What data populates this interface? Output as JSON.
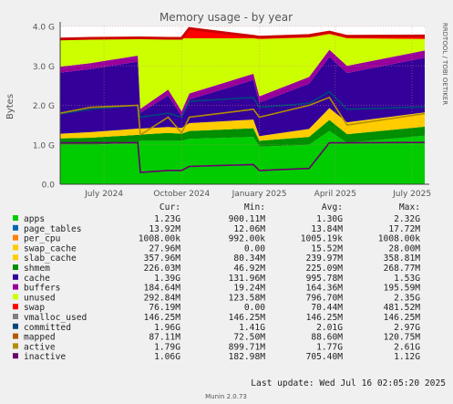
{
  "chart_data": {
    "type": "area",
    "title": "Memory usage - by year",
    "ylabel": "Bytes",
    "side_label": "RRDTOOL / TOBI OETIKER",
    "y_ticks": [
      "0.0",
      "1.0 G",
      "2.0 G",
      "3.0 G",
      "4.0 G"
    ],
    "ylim_gb": [
      0,
      4.0
    ],
    "x_ticks": [
      "July 2024",
      "October 2024",
      "January 2025",
      "April 2025",
      "July 2025"
    ],
    "x_range": [
      "2024-05-10",
      "2025-07-16"
    ],
    "grid": true,
    "columns": [
      "Cur:",
      "Min:",
      "Avg:",
      "Max:"
    ],
    "series": [
      {
        "name": "apps",
        "color": "#00cc00",
        "cur": "1.23G",
        "min": "900.11M",
        "avg": "1.30G",
        "max": "2.32G"
      },
      {
        "name": "page_tables",
        "color": "#0066b3",
        "cur": "13.92M",
        "min": "12.06M",
        "avg": "13.84M",
        "max": "17.72M"
      },
      {
        "name": "per_cpu",
        "color": "#ff8000",
        "cur": "1008.00k",
        "min": "992.00k",
        "avg": "1005.19k",
        "max": "1008.00k"
      },
      {
        "name": "swap_cache",
        "color": "#ffcc00",
        "cur": "27.96M",
        "min": "0.00",
        "avg": "15.52M",
        "max": "28.00M"
      },
      {
        "name": "slab_cache",
        "color": "#ffcc00",
        "cur": "357.96M",
        "min": "80.34M",
        "avg": "239.97M",
        "max": "358.81M"
      },
      {
        "name": "shmem",
        "color": "#008f00",
        "cur": "226.03M",
        "min": "46.92M",
        "avg": "225.09M",
        "max": "268.77M"
      },
      {
        "name": "cache",
        "color": "#330099",
        "cur": "1.39G",
        "min": "131.96M",
        "avg": "995.78M",
        "max": "1.53G"
      },
      {
        "name": "buffers",
        "color": "#990099",
        "cur": "184.64M",
        "min": "19.24M",
        "avg": "164.36M",
        "max": "195.59M"
      },
      {
        "name": "unused",
        "color": "#ccff00",
        "cur": "292.84M",
        "min": "123.58M",
        "avg": "796.70M",
        "max": "2.35G"
      },
      {
        "name": "swap",
        "color": "#ff0000",
        "cur": "76.19M",
        "min": "0.00",
        "avg": "70.44M",
        "max": "481.52M"
      },
      {
        "name": "vmalloc_used",
        "color": "#808080",
        "cur": "146.25M",
        "min": "146.25M",
        "avg": "146.25M",
        "max": "146.25M"
      },
      {
        "name": "committed",
        "color": "#00487d",
        "cur": "1.96G",
        "min": "1.41G",
        "avg": "2.01G",
        "max": "2.97G"
      },
      {
        "name": "mapped",
        "color": "#b35a00",
        "cur": "87.11M",
        "min": "72.50M",
        "avg": "88.60M",
        "max": "120.75M"
      },
      {
        "name": "active",
        "color": "#b38f00",
        "cur": "1.79G",
        "min": "899.71M",
        "avg": "1.77G",
        "max": "2.61G"
      },
      {
        "name": "inactive",
        "color": "#6b006b",
        "cur": "1.06G",
        "min": "182.98M",
        "avg": "705.40M",
        "max": "1.12G"
      }
    ],
    "stack_keys": [
      "apps",
      "shmem",
      "slab_cache",
      "cache",
      "buffers",
      "unused",
      "swap"
    ],
    "stack_colors": {
      "apps": "#00cc00",
      "shmem": "#008f00",
      "slab_cache": "#ffcc00",
      "cache": "#330099",
      "buffers": "#990099",
      "unused": "#ccff00",
      "swap": "#ff0000"
    },
    "line_colors": {
      "committed": "#00487d",
      "active": "#b38f00",
      "inactive": "#6b006b",
      "swap": "#cc0000"
    },
    "stack_points": [
      {
        "x": "2024-05-10",
        "apps": 1.0,
        "shmem": 0.16,
        "slab_cache": 0.12,
        "cache": 1.55,
        "buffers": 0.15,
        "unused": 0.7,
        "swap": 0.0,
        "committed": 1.78,
        "active": 1.8,
        "inactive": 1.05
      },
      {
        "x": "2024-06-15",
        "apps": 1.0,
        "shmem": 0.18,
        "slab_cache": 0.14,
        "cache": 1.6,
        "buffers": 0.15,
        "unused": 0.63,
        "swap": 0.0,
        "committed": 1.9,
        "active": 1.95,
        "inactive": 1.05
      },
      {
        "x": "2024-08-10",
        "apps": 1.05,
        "shmem": 0.2,
        "slab_cache": 0.16,
        "cache": 1.7,
        "buffers": 0.15,
        "unused": 0.45,
        "swap": 0.0,
        "committed": 2.0,
        "active": 2.0,
        "inactive": 1.05
      },
      {
        "x": "2024-08-13",
        "apps": 1.1,
        "shmem": 0.16,
        "slab_cache": 0.15,
        "cache": 0.4,
        "buffers": 0.1,
        "unused": 1.8,
        "swap": 0.0,
        "committed": 1.7,
        "active": 1.25,
        "inactive": 0.3
      },
      {
        "x": "2024-09-15",
        "apps": 1.1,
        "shmem": 0.2,
        "slab_cache": 0.15,
        "cache": 0.8,
        "buffers": 0.15,
        "unused": 1.3,
        "swap": 0.0,
        "committed": 1.8,
        "active": 1.7,
        "inactive": 0.35
      },
      {
        "x": "2024-10-01",
        "apps": 1.1,
        "shmem": 0.18,
        "slab_cache": 0.15,
        "cache": 0.3,
        "buffers": 0.12,
        "unused": 1.85,
        "swap": 0.0,
        "committed": 1.7,
        "active": 1.3,
        "inactive": 0.35
      },
      {
        "x": "2024-10-10",
        "apps": 1.15,
        "shmem": 0.2,
        "slab_cache": 0.2,
        "cache": 0.6,
        "buffers": 0.15,
        "unused": 1.4,
        "swap": 0.25,
        "committed": 2.1,
        "active": 1.7,
        "inactive": 0.45
      },
      {
        "x": "2024-12-25",
        "apps": 1.2,
        "shmem": 0.22,
        "slab_cache": 0.22,
        "cache": 1.0,
        "buffers": 0.16,
        "unused": 0.9,
        "swap": 0.05,
        "committed": 2.2,
        "active": 1.9,
        "inactive": 0.5
      },
      {
        "x": "2025-01-01",
        "apps": 0.95,
        "shmem": 0.15,
        "slab_cache": 0.12,
        "cache": 0.85,
        "buffers": 0.16,
        "unused": 1.45,
        "swap": 0.05,
        "committed": 1.95,
        "active": 1.7,
        "inactive": 0.35
      },
      {
        "x": "2025-03-01",
        "apps": 1.0,
        "shmem": 0.2,
        "slab_cache": 0.2,
        "cache": 1.15,
        "buffers": 0.17,
        "unused": 1.0,
        "swap": 0.05,
        "committed": 2.05,
        "active": 2.0,
        "inactive": 0.4
      },
      {
        "x": "2025-03-25",
        "apps": 1.35,
        "shmem": 0.28,
        "slab_cache": 0.3,
        "cache": 1.3,
        "buffers": 0.18,
        "unused": 0.4,
        "swap": 0.05,
        "committed": 2.35,
        "active": 2.2,
        "inactive": 1.05
      },
      {
        "x": "2025-04-15",
        "apps": 1.05,
        "shmem": 0.22,
        "slab_cache": 0.3,
        "cache": 1.25,
        "buffers": 0.18,
        "unused": 0.7,
        "swap": 0.05,
        "committed": 1.9,
        "active": 1.5,
        "inactive": 1.05
      },
      {
        "x": "2025-07-16",
        "apps": 1.23,
        "shmem": 0.23,
        "slab_cache": 0.36,
        "cache": 1.39,
        "buffers": 0.18,
        "unused": 0.29,
        "swap": 0.08,
        "committed": 1.96,
        "active": 1.79,
        "inactive": 1.06
      }
    ]
  },
  "footer": {
    "last_update": "Last update:  Wed Jul 16 02:05:20 2025",
    "credit": "Munin 2.0.73"
  }
}
